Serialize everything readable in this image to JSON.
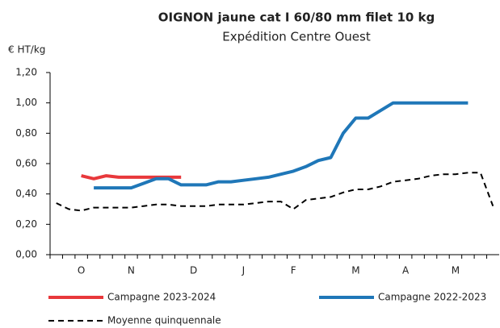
{
  "chart_data": {
    "type": "line",
    "title": "OIGNON jaune cat I 60/80 mm filet 10 kg",
    "subtitle": "Expédition Centre Ouest",
    "y_label": "€ HT/kg",
    "categories": [
      null,
      null,
      "O",
      null,
      null,
      null,
      "N",
      null,
      null,
      null,
      null,
      "D",
      null,
      null,
      null,
      "J",
      null,
      null,
      null,
      "F",
      null,
      null,
      null,
      null,
      "M",
      null,
      null,
      null,
      "A",
      null,
      null,
      null,
      "M",
      null,
      null,
      null
    ],
    "series": [
      {
        "name": "Campagne 2023-2024",
        "color": "#e8383b",
        "dash": false,
        "values": [
          null,
          null,
          0.52,
          0.5,
          0.52,
          0.51,
          0.51,
          0.51,
          0.51,
          0.51,
          0.51,
          null,
          null,
          null,
          null,
          null,
          null,
          null,
          null,
          null,
          null,
          null,
          null,
          null,
          null,
          null,
          null,
          null,
          null,
          null,
          null,
          null,
          null,
          null,
          null,
          null
        ]
      },
      {
        "name": "Campagne 2022-2023",
        "color": "#1f77b8",
        "dash": false,
        "values": [
          null,
          null,
          null,
          0.44,
          0.44,
          0.44,
          0.44,
          0.47,
          0.5,
          0.5,
          0.46,
          0.46,
          0.46,
          0.48,
          0.48,
          0.49,
          0.5,
          0.51,
          0.53,
          0.55,
          0.58,
          0.62,
          0.64,
          0.8,
          0.9,
          0.9,
          0.95,
          1.0,
          1.0,
          1.0,
          1.0,
          1.0,
          1.0,
          1.0,
          null,
          null
        ]
      },
      {
        "name": "Moyenne quinquennale",
        "color": "#000000",
        "dash": true,
        "values": [
          0.34,
          0.3,
          0.29,
          0.31,
          0.31,
          0.31,
          0.31,
          0.32,
          0.33,
          0.33,
          0.32,
          0.32,
          0.32,
          0.33,
          0.33,
          0.33,
          0.34,
          0.35,
          0.35,
          0.3,
          0.36,
          0.37,
          0.38,
          0.41,
          0.43,
          0.43,
          0.45,
          0.48,
          0.49,
          0.5,
          0.52,
          0.53,
          0.53,
          0.54,
          0.54,
          0.32
        ]
      }
    ],
    "ylim": [
      0,
      1.2
    ],
    "yticks": [
      {
        "value": 0,
        "label": "0,00"
      },
      {
        "value": 0.2,
        "label": "0,20"
      },
      {
        "value": 0.4,
        "label": "0,40"
      },
      {
        "value": 0.6,
        "label": "0,60"
      },
      {
        "value": 0.8,
        "label": "0,80"
      },
      {
        "value": 1.0,
        "label": "1,00"
      },
      {
        "value": 1.2,
        "label": "1,20"
      }
    ],
    "grid": false,
    "legend": "bottom"
  }
}
